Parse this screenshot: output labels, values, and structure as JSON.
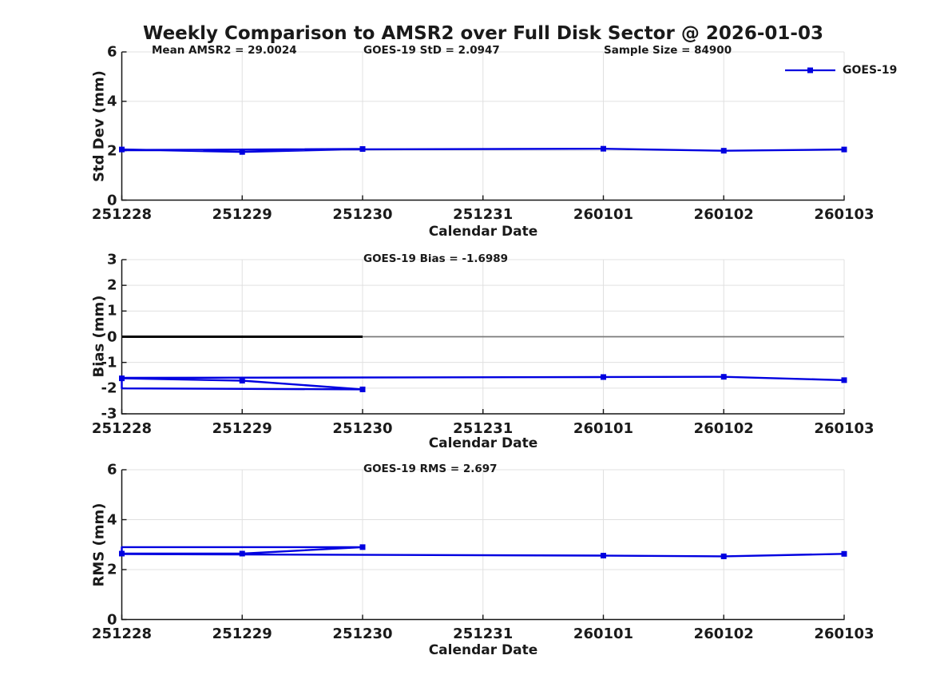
{
  "title": "Weekly Comparison to AMSR2 over Full Disk Sector @ 2026-01-03",
  "colors": {
    "series": "#0000e0",
    "grid": "#e0e0e0",
    "axis": "#151515",
    "text": "#1a1a1a",
    "zero_line_thin": "#7a7a7a",
    "zero_line_bold": "#000000"
  },
  "legend": {
    "label": "GOES-19",
    "marker": "filled-square",
    "line_color": "#0000e0"
  },
  "x_axis": {
    "label": "Calendar Date",
    "ticks": [
      "251228",
      "251229",
      "251230",
      "251231",
      "260101",
      "260102",
      "260103"
    ]
  },
  "chart_data": [
    {
      "type": "line",
      "name": "std-dev-panel",
      "ylabel": "Std Dev (mm)",
      "ylim": [
        0,
        6
      ],
      "yticks": [
        0,
        2,
        4,
        6
      ],
      "grid": true,
      "annotations": [
        {
          "text": "Mean AMSR2 = 29.0024"
        },
        {
          "text": "GOES-19 StD = 2.0947"
        },
        {
          "text": "Sample Size = 84900"
        }
      ],
      "series": [
        {
          "name": "GOES-19",
          "points": [
            {
              "x": "251228",
              "y": 2.05,
              "marker": true
            },
            {
              "x": "251229",
              "y": 1.95,
              "marker": true
            },
            {
              "x": "251230",
              "y": 2.07,
              "marker": true
            },
            {
              "x": "251228",
              "y": 2.02,
              "marker": false
            },
            {
              "x": "251228",
              "y": 2.03,
              "marker": false
            },
            {
              "x": "260101",
              "y": 2.08,
              "marker": true
            },
            {
              "x": "260102",
              "y": 2.0,
              "marker": true
            },
            {
              "x": "260103",
              "y": 2.05,
              "marker": true
            }
          ]
        }
      ]
    },
    {
      "type": "line",
      "name": "bias-panel",
      "ylabel": "Bias (mm)",
      "ylim": [
        -3,
        3
      ],
      "yticks": [
        -3,
        -2,
        -1,
        0,
        1,
        2,
        3
      ],
      "grid": true,
      "zero_line": {
        "value": 0,
        "bold_from": "251228",
        "bold_to": "251230"
      },
      "annotations": [
        {
          "text": "GOES-19 Bias  = -1.6989"
        }
      ],
      "series": [
        {
          "name": "GOES-19",
          "points": [
            {
              "x": "251228",
              "y": -1.62,
              "marker": true
            },
            {
              "x": "251229",
              "y": -1.71,
              "marker": true
            },
            {
              "x": "251230",
              "y": -2.05,
              "marker": true
            },
            {
              "x": "251228",
              "y": -2.01,
              "marker": false
            },
            {
              "x": "251228",
              "y": -1.6,
              "marker": false
            },
            {
              "x": "260101",
              "y": -1.57,
              "marker": true
            },
            {
              "x": "260102",
              "y": -1.56,
              "marker": true
            },
            {
              "x": "260103",
              "y": -1.69,
              "marker": true
            }
          ]
        }
      ]
    },
    {
      "type": "line",
      "name": "rms-panel",
      "ylabel": "RMS (mm)",
      "ylim": [
        0,
        6
      ],
      "yticks": [
        0,
        2,
        4,
        6
      ],
      "grid": true,
      "annotations": [
        {
          "text": "GOES-19 RMS = 2.697"
        }
      ],
      "series": [
        {
          "name": "GOES-19",
          "points": [
            {
              "x": "251228",
              "y": 2.64,
              "marker": true
            },
            {
              "x": "251229",
              "y": 2.64,
              "marker": true
            },
            {
              "x": "251230",
              "y": 2.9,
              "marker": true
            },
            {
              "x": "251228",
              "y": 2.9,
              "marker": false
            },
            {
              "x": "251228",
              "y": 2.62,
              "marker": false
            },
            {
              "x": "260101",
              "y": 2.56,
              "marker": true
            },
            {
              "x": "260102",
              "y": 2.53,
              "marker": true
            },
            {
              "x": "260103",
              "y": 2.63,
              "marker": true
            }
          ]
        }
      ]
    }
  ]
}
